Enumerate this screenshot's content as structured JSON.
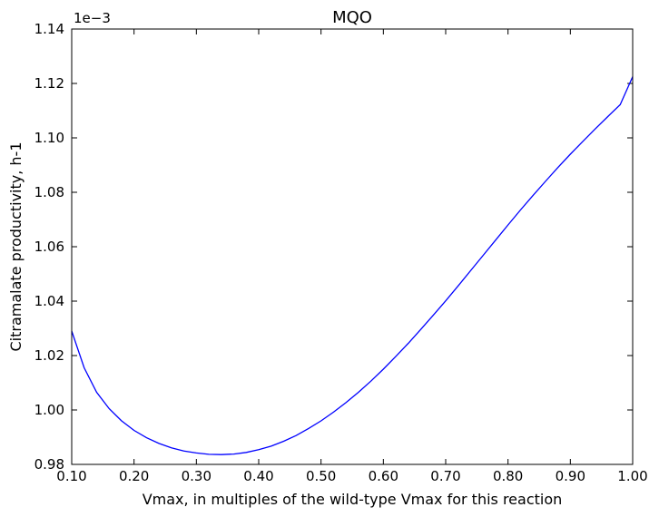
{
  "chart_data": {
    "type": "line",
    "title": "MQO",
    "xlabel": "Vmax, in multiples of the wild-type Vmax for this reaction",
    "ylabel": "Citramalate productivity, h-1",
    "y_offset_label": "1e−3",
    "xlim": [
      0.1,
      1.0
    ],
    "ylim": [
      0.98,
      1.14
    ],
    "x_ticks": [
      "0.10",
      "0.20",
      "0.30",
      "0.40",
      "0.50",
      "0.60",
      "0.70",
      "0.80",
      "0.90",
      "1.00"
    ],
    "y_ticks": [
      "0.98",
      "1.00",
      "1.02",
      "1.04",
      "1.06",
      "1.08",
      "1.10",
      "1.12",
      "1.14"
    ],
    "grid": false,
    "series": [
      {
        "color": "#0000ff",
        "x": [
          0.1,
          0.12,
          0.14,
          0.16,
          0.18,
          0.2,
          0.22,
          0.24,
          0.26,
          0.28,
          0.3,
          0.32,
          0.34,
          0.36,
          0.38,
          0.4,
          0.42,
          0.44,
          0.46,
          0.48,
          0.5,
          0.52,
          0.54,
          0.56,
          0.58,
          0.6,
          0.62,
          0.64,
          0.66,
          0.68,
          0.7,
          0.72,
          0.74,
          0.76,
          0.78,
          0.8,
          0.82,
          0.84,
          0.86,
          0.88,
          0.9,
          0.92,
          0.94,
          0.96,
          0.98,
          1.0
        ],
        "y": [
          1.029,
          1.0155,
          1.0065,
          1.0005,
          0.996,
          0.9925,
          0.9898,
          0.9877,
          0.9861,
          0.9849,
          0.9842,
          0.9837,
          0.9836,
          0.9838,
          0.9844,
          0.9854,
          0.9867,
          0.9885,
          0.9906,
          0.9932,
          0.996,
          0.9992,
          1.0027,
          1.0065,
          1.0106,
          1.015,
          1.0197,
          1.0245,
          1.0296,
          1.0348,
          1.0401,
          1.0456,
          1.0512,
          1.0568,
          1.0624,
          1.068,
          1.0735,
          1.0788,
          1.084,
          1.0891,
          1.094,
          1.0987,
          1.1033,
          1.1078,
          1.1122,
          1.1225
        ]
      }
    ]
  }
}
